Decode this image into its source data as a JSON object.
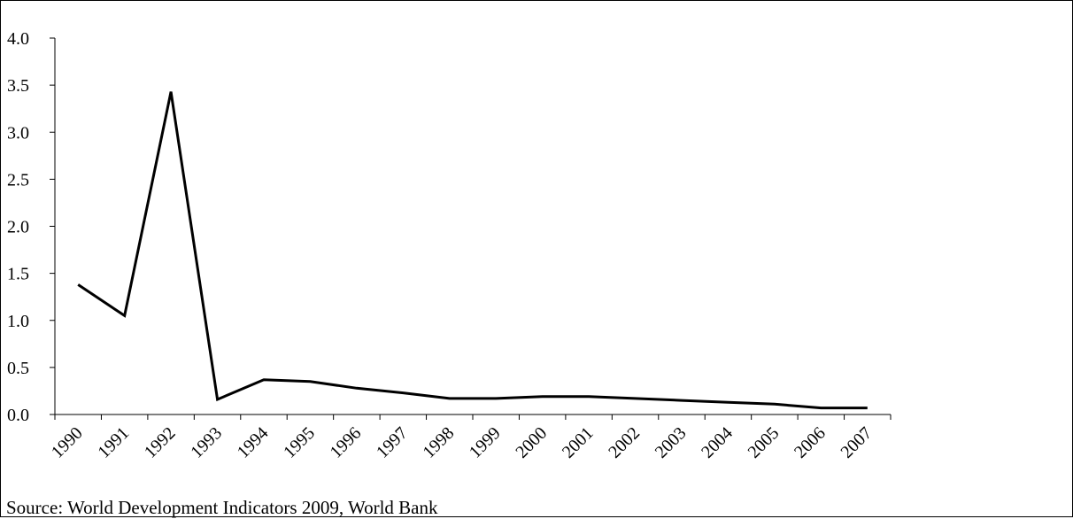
{
  "source_note": "Source: World Development Indicators 2009, World Bank",
  "chart_data": {
    "type": "line",
    "title": "",
    "xlabel": "",
    "ylabel": "",
    "categories": [
      "1990",
      "1991",
      "1992",
      "1993",
      "1994",
      "1995",
      "1996",
      "1997",
      "1998",
      "1999",
      "2000",
      "2001",
      "2002",
      "2003",
      "2004",
      "2005",
      "2006",
      "2007"
    ],
    "series": [
      {
        "values": [
          1.38,
          1.05,
          3.43,
          0.16,
          0.37,
          0.35,
          0.28,
          0.23,
          0.17,
          0.17,
          0.19,
          0.19,
          0.17,
          0.15,
          0.13,
          0.11,
          0.07,
          0.07
        ],
        "color": "#000000"
      }
    ],
    "ylim": [
      0,
      4.0
    ],
    "yticks": [
      "0.0",
      "0.5",
      "1.0",
      "1.5",
      "2.0",
      "2.5",
      "3.0",
      "3.5",
      "4.0"
    ],
    "grid": false,
    "legend": "none"
  }
}
